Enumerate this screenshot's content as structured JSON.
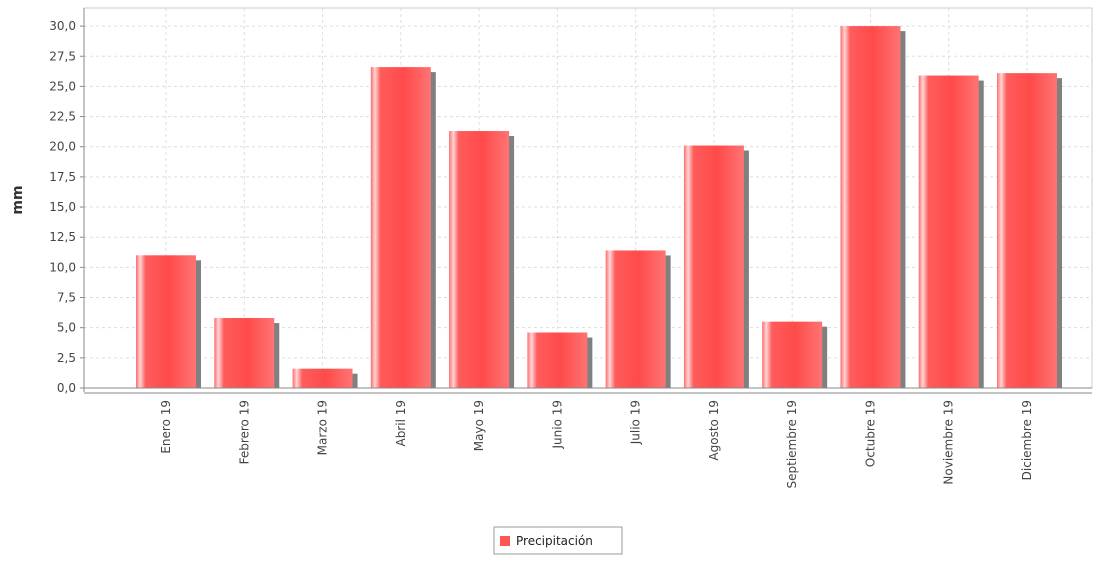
{
  "chart_data": {
    "type": "bar",
    "title": "",
    "xlabel": "",
    "ylabel": "mm",
    "ylim": [
      0,
      31.5
    ],
    "y_ticks": [
      "0,0",
      "2,5",
      "5,0",
      "7,5",
      "10,0",
      "12,5",
      "15,0",
      "17,5",
      "20,0",
      "22,5",
      "25,0",
      "27,5",
      "30,0"
    ],
    "categories": [
      "Enero 19",
      "Febrero 19",
      "Marzo 19",
      "Abril 19",
      "Mayo 19",
      "Junio 19",
      "Julio 19",
      "Agosto 19",
      "Septiembre 19",
      "Octubre 19",
      "Noviembre 19",
      "Diciembre 19"
    ],
    "series": [
      {
        "name": "Precipitación",
        "color": "#ff5555",
        "values": [
          11.0,
          5.8,
          1.6,
          26.6,
          21.3,
          4.6,
          11.4,
          20.1,
          5.5,
          30.0,
          25.9,
          26.1
        ]
      }
    ],
    "grid": true,
    "legend": "bottom-center"
  }
}
